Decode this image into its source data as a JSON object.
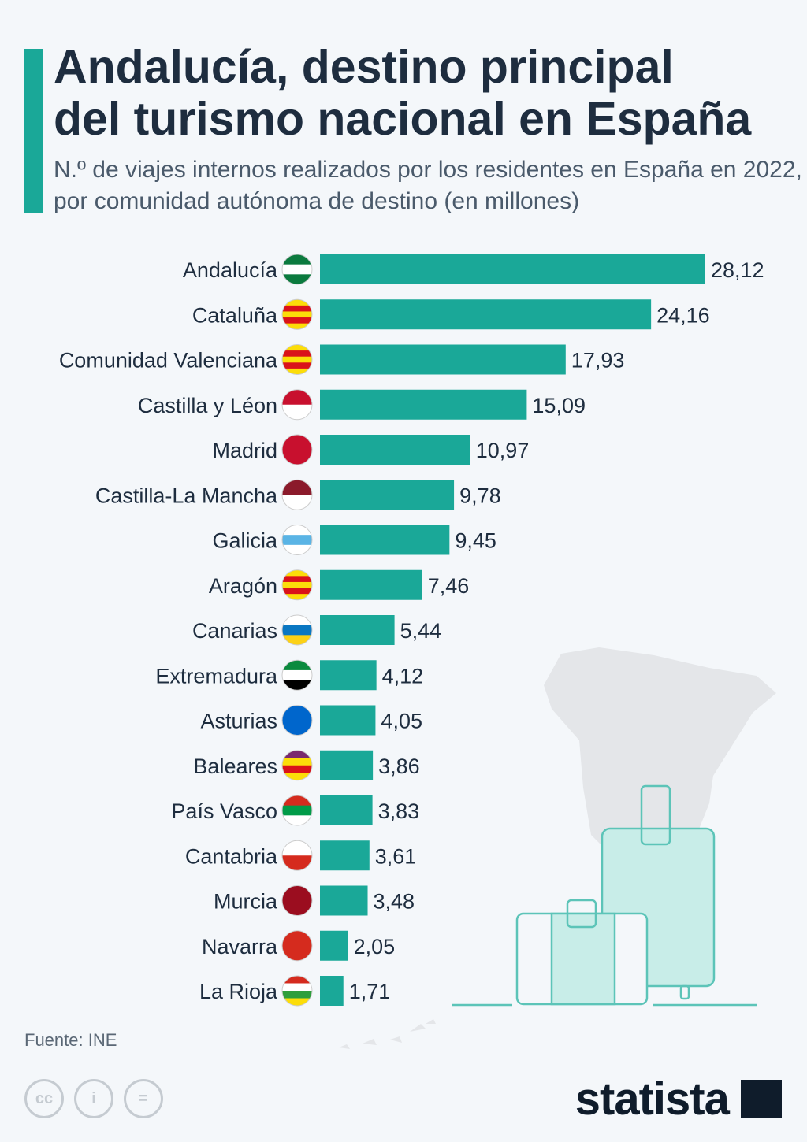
{
  "header": {
    "title_line1": "Andalucía, destino principal",
    "title_line2": "del turismo nacional en España",
    "subtitle": "N.º de viajes internos realizados por los residentes en España en 2022, por comunidad autónoma de destino (en millones)"
  },
  "footer": {
    "source": "Fuente: INE",
    "logo": "statista",
    "license_icons": [
      "cc-icon",
      "attribution-icon",
      "no-derivatives-icon"
    ]
  },
  "colors": {
    "bar": "#1aa898",
    "text": "#1e2d3f",
    "background": "#f4f7fa"
  },
  "chart_data": {
    "type": "bar",
    "orientation": "horizontal",
    "xlabel": "",
    "ylabel": "",
    "categories": [
      "Andalucía",
      "Cataluña",
      "Comunidad Valenciana",
      "Castilla y Léon",
      "Madrid",
      "Castilla-La Mancha",
      "Galicia",
      "Aragón",
      "Canarias",
      "Extremadura",
      "Asturias",
      "Baleares",
      "País Vasco",
      "Cantabria",
      "Murcia",
      "Navarra",
      "La Rioja"
    ],
    "values": [
      28.12,
      24.16,
      17.93,
      15.09,
      10.97,
      9.78,
      9.45,
      7.46,
      5.44,
      4.12,
      4.05,
      3.86,
      3.83,
      3.61,
      3.48,
      2.05,
      1.71
    ],
    "value_labels": [
      "28,12",
      "24,16",
      "17,93",
      "15,09",
      "10,97",
      "9,78",
      "9,45",
      "7,46",
      "5,44",
      "4,12",
      "4,05",
      "3,86",
      "3,83",
      "3,61",
      "3,48",
      "2,05",
      "1,71"
    ],
    "flag_colors": [
      [
        "#0b7a3e",
        "#ffffff",
        "#0b7a3e"
      ],
      [
        "#fcdd09",
        "#da121a",
        "#fcdd09",
        "#da121a",
        "#fcdd09"
      ],
      [
        "#fcdd09",
        "#da121a",
        "#fcdd09",
        "#da121a",
        "#fcdd09"
      ],
      [
        "#c8102e",
        "#ffffff"
      ],
      [
        "#c8102e"
      ],
      [
        "#8b1a2b",
        "#ffffff"
      ],
      [
        "#ffffff",
        "#5ab4e5",
        "#ffffff"
      ],
      [
        "#fcdd09",
        "#da121a",
        "#fcdd09",
        "#da121a",
        "#fcdd09"
      ],
      [
        "#ffffff",
        "#0a77c2",
        "#fcd116"
      ],
      [
        "#0b8a3e",
        "#ffffff",
        "#000000"
      ],
      [
        "#0066cc"
      ],
      [
        "#7a2a6e",
        "#fcdd09",
        "#da121a",
        "#fcdd09"
      ],
      [
        "#d52b1e",
        "#009b48",
        "#ffffff"
      ],
      [
        "#ffffff",
        "#d52b1e"
      ],
      [
        "#9b0d1f"
      ],
      [
        "#d52b1e"
      ],
      [
        "#d52b1e",
        "#ffffff",
        "#2e9e3c",
        "#fcdd09"
      ]
    ]
  }
}
